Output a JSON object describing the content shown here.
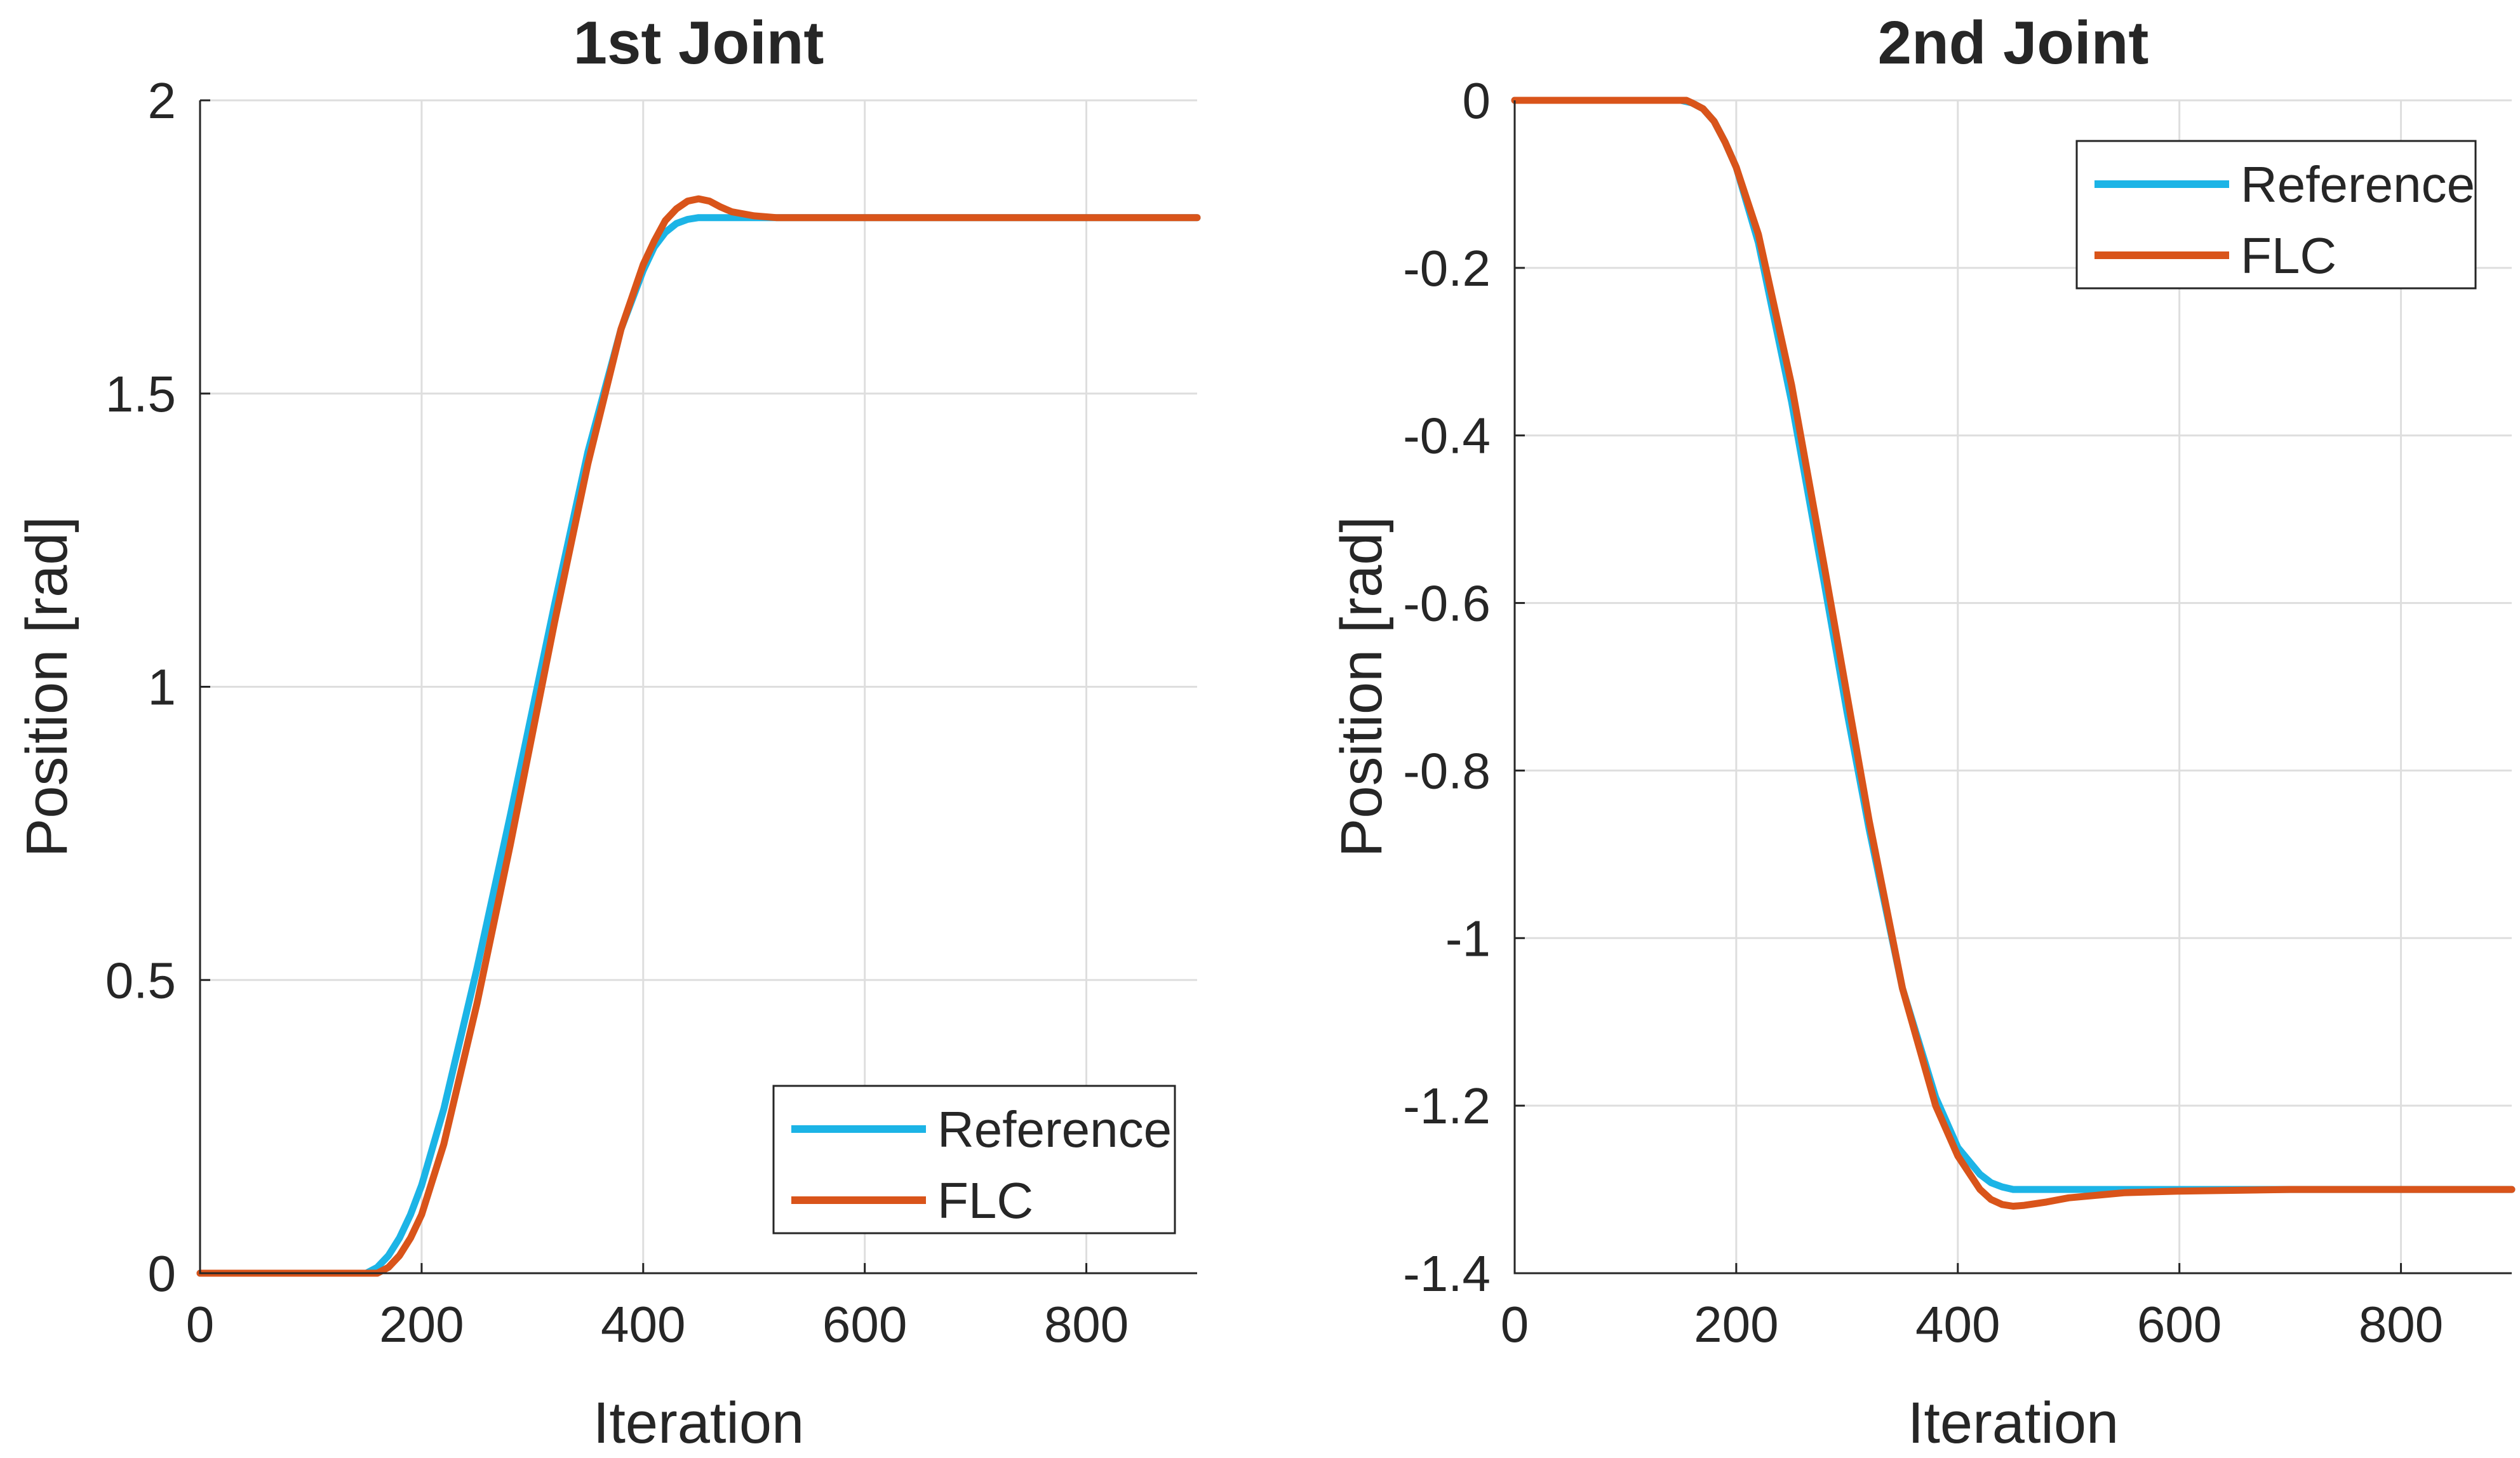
{
  "colors": {
    "reference": "#1cb4e6",
    "flc": "#d9541a",
    "grid": "#dedede",
    "axis": "#262626"
  },
  "chart_data": [
    {
      "type": "line",
      "title": "1st Joint",
      "xlabel": "Iteration",
      "ylabel": "Position [rad]",
      "xlim": [
        0,
        900
      ],
      "ylim": [
        0,
        2
      ],
      "xticks": [
        0,
        200,
        400,
        600,
        800
      ],
      "yticks": [
        0,
        0.5,
        1,
        1.5,
        2
      ],
      "xtick_labels": [
        "0",
        "200",
        "400",
        "600",
        "800"
      ],
      "ytick_labels": [
        "0",
        "0.5",
        "1",
        "1.5",
        "2"
      ],
      "grid": true,
      "legend_position": "bottom-right",
      "series": [
        {
          "name": "Reference",
          "color": "#1cb4e6",
          "x": [
            0,
            150,
            160,
            170,
            180,
            190,
            200,
            220,
            250,
            280,
            300,
            320,
            350,
            380,
            400,
            410,
            420,
            430,
            440,
            450,
            460,
            500,
            600,
            700,
            800,
            900
          ],
          "y": [
            0,
            0,
            0.01,
            0.03,
            0.06,
            0.1,
            0.15,
            0.28,
            0.52,
            0.78,
            0.96,
            1.14,
            1.4,
            1.61,
            1.71,
            1.75,
            1.775,
            1.79,
            1.797,
            1.8,
            1.8,
            1.8,
            1.8,
            1.8,
            1.8,
            1.8
          ]
        },
        {
          "name": "FLC",
          "color": "#d9541a",
          "x": [
            0,
            160,
            170,
            180,
            190,
            200,
            220,
            250,
            280,
            300,
            320,
            350,
            380,
            400,
            410,
            420,
            430,
            440,
            450,
            460,
            470,
            480,
            500,
            520,
            550,
            600,
            700,
            800,
            900
          ],
          "y": [
            0,
            0,
            0.01,
            0.03,
            0.06,
            0.1,
            0.22,
            0.46,
            0.73,
            0.92,
            1.11,
            1.38,
            1.61,
            1.72,
            1.76,
            1.795,
            1.815,
            1.828,
            1.832,
            1.828,
            1.818,
            1.81,
            1.803,
            1.8,
            1.8,
            1.8,
            1.8,
            1.8,
            1.8
          ]
        }
      ]
    },
    {
      "type": "line",
      "title": "2nd Joint",
      "xlabel": "Iteration",
      "ylabel": "Position [rad]",
      "xlim": [
        0,
        900
      ],
      "ylim": [
        -1.4,
        0
      ],
      "xticks": [
        0,
        200,
        400,
        600,
        800
      ],
      "yticks": [
        -1.4,
        -1.2,
        -1,
        -0.8,
        -0.6,
        -0.4,
        -0.2,
        0
      ],
      "xtick_labels": [
        "0",
        "200",
        "400",
        "600",
        "800"
      ],
      "ytick_labels": [
        "-1.4",
        "-1.2",
        "-1",
        "-0.8",
        "-0.6",
        "-0.4",
        "-0.2",
        "0"
      ],
      "grid": true,
      "legend_position": "top-right",
      "series": [
        {
          "name": "Reference",
          "color": "#1cb4e6",
          "x": [
            0,
            150,
            160,
            170,
            180,
            190,
            200,
            220,
            250,
            280,
            300,
            320,
            350,
            380,
            400,
            420,
            430,
            440,
            450,
            460,
            500,
            600,
            700,
            800,
            900
          ],
          "y": [
            0,
            0,
            -0.003,
            -0.01,
            -0.025,
            -0.05,
            -0.08,
            -0.17,
            -0.36,
            -0.58,
            -0.73,
            -0.87,
            -1.06,
            -1.19,
            -1.25,
            -1.282,
            -1.292,
            -1.297,
            -1.3,
            -1.3,
            -1.3,
            -1.3,
            -1.3,
            -1.3,
            -1.3
          ]
        },
        {
          "name": "FLC",
          "color": "#d9541a",
          "x": [
            0,
            155,
            160,
            170,
            180,
            190,
            200,
            220,
            250,
            280,
            300,
            320,
            350,
            380,
            400,
            420,
            430,
            440,
            450,
            460,
            480,
            500,
            550,
            600,
            700,
            800,
            900
          ],
          "y": [
            0,
            0,
            -0.003,
            -0.01,
            -0.025,
            -0.05,
            -0.08,
            -0.16,
            -0.34,
            -0.56,
            -0.71,
            -0.86,
            -1.06,
            -1.2,
            -1.26,
            -1.3,
            -1.312,
            -1.318,
            -1.32,
            -1.319,
            -1.315,
            -1.31,
            -1.304,
            -1.302,
            -1.3,
            -1.3,
            -1.3
          ]
        }
      ]
    }
  ]
}
